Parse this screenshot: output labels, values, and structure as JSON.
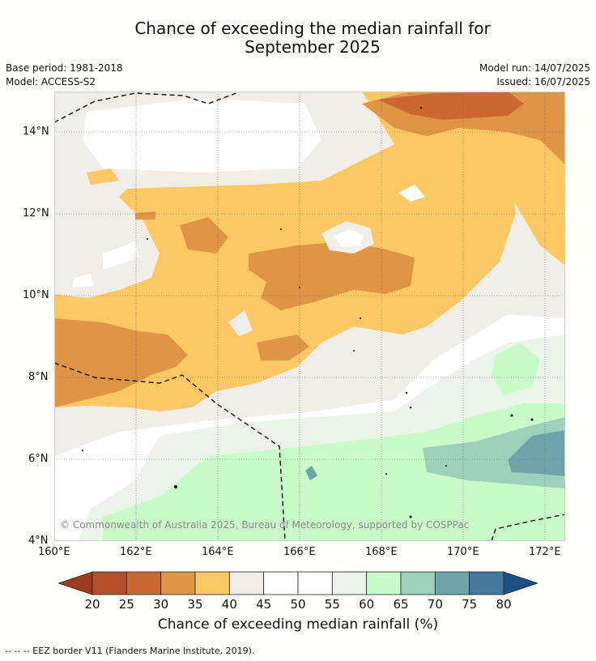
{
  "title_line1": "Chance of exceeding the median rainfall for",
  "title_line2": "September 2025",
  "base_period": "Base period: 1981-2018",
  "model": "Model: ACCESS-S2",
  "model_run": "Model run: 14/07/2025",
  "issued": "Issued: 16/07/2025",
  "copyright": "© Commonwealth of Australia 2025, Bureau of Meteorology, supported by COSPPac",
  "footer": "--  --  -- EEZ border V11 (Flanders Marine Institute, 2019).",
  "lat_ticks": [
    "14°N",
    "12°N",
    "10°N",
    "8°N",
    "6°N",
    "4°N"
  ],
  "lon_ticks": [
    "160°E",
    "162°E",
    "164°E",
    "166°E",
    "168°E",
    "170°E",
    "172°E"
  ],
  "colorbar": {
    "label": "Chance of exceeding median rainfall (%)",
    "ticks": [
      "20",
      "25",
      "30",
      "35",
      "40",
      "45",
      "50",
      "55",
      "60",
      "65",
      "70",
      "75",
      "80"
    ],
    "colors": [
      "#9c3a1e",
      "#b4502a",
      "#cc6633",
      "#e09445",
      "#fcc864",
      "#f1ede8",
      "#ffffff",
      "#ffffff",
      "#eaf4e8",
      "#c9fbc9",
      "#9dd1bc",
      "#6fa3aa",
      "#46789d",
      "#1c4f86"
    ]
  }
}
